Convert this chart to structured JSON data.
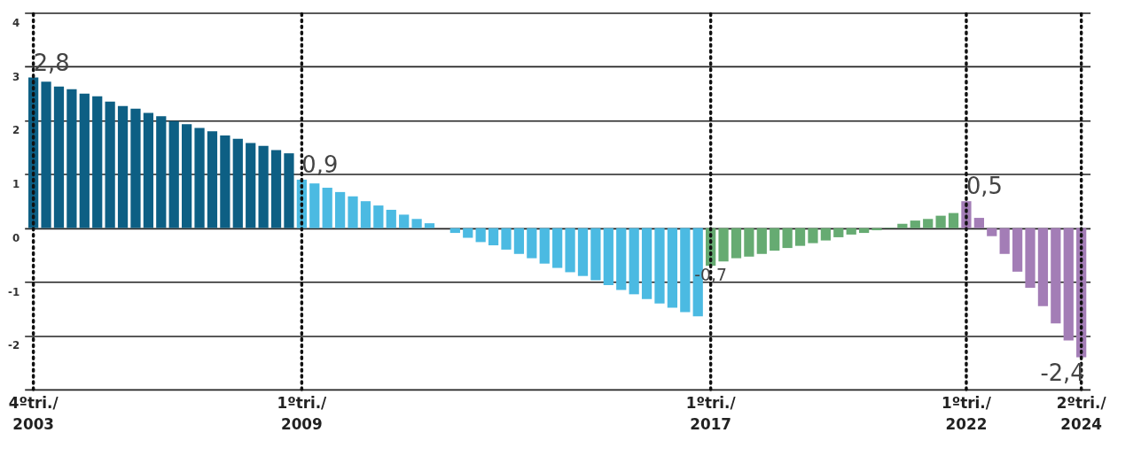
{
  "chart_data": {
    "type": "bar",
    "categories": [
      "4ºtri./2003",
      null,
      null,
      null,
      null,
      null,
      null,
      null,
      null,
      null,
      null,
      null,
      null,
      null,
      null,
      null,
      null,
      null,
      null,
      null,
      null,
      "1ºtri./2009",
      null,
      null,
      null,
      null,
      null,
      null,
      null,
      null,
      null,
      null,
      null,
      null,
      null,
      null,
      null,
      null,
      null,
      null,
      null,
      null,
      null,
      null,
      null,
      null,
      null,
      null,
      null,
      null,
      null,
      null,
      null,
      "1ºtri./2017",
      null,
      null,
      null,
      null,
      null,
      null,
      null,
      null,
      null,
      null,
      null,
      null,
      null,
      null,
      null,
      null,
      null,
      null,
      null,
      "1ºtri./2022",
      null,
      null,
      null,
      null,
      null,
      null,
      null,
      null,
      "2ºtri./2024"
    ],
    "values": [
      2.8,
      2.72,
      2.63,
      2.58,
      2.5,
      2.45,
      2.35,
      2.27,
      2.22,
      2.14,
      2.08,
      1.99,
      1.93,
      1.86,
      1.8,
      1.72,
      1.66,
      1.58,
      1.53,
      1.45,
      1.39,
      0.9,
      0.83,
      0.75,
      0.67,
      0.59,
      0.5,
      0.42,
      0.34,
      0.25,
      0.17,
      0.09,
      0,
      -0.09,
      -0.18,
      -0.26,
      -0.32,
      -0.4,
      -0.48,
      -0.56,
      -0.66,
      -0.74,
      -0.82,
      -0.89,
      -0.97,
      -1.06,
      -1.15,
      -1.23,
      -1.32,
      -1.4,
      -1.48,
      -1.56,
      -1.64,
      -0.7,
      -0.62,
      -0.56,
      -0.53,
      -0.48,
      -0.42,
      -0.37,
      -0.33,
      -0.28,
      -0.23,
      -0.17,
      -0.12,
      -0.09,
      -0.04,
      0.01,
      0.08,
      0.14,
      0.17,
      0.23,
      0.28,
      0.5,
      0.19,
      -0.15,
      -0.48,
      -0.81,
      -1.11,
      -1.45,
      -1.77,
      -2.09,
      -2.4
    ],
    "colors": [
      "#0d5f84",
      "#0d5f84",
      "#0d5f84",
      "#0d5f84",
      "#0d5f84",
      "#0d5f84",
      "#0d5f84",
      "#0d5f84",
      "#0d5f84",
      "#0d5f84",
      "#0d5f84",
      "#0d5f84",
      "#0d5f84",
      "#0d5f84",
      "#0d5f84",
      "#0d5f84",
      "#0d5f84",
      "#0d5f84",
      "#0d5f84",
      "#0d5f84",
      "#0d5f84",
      "#4bbae2",
      "#4bbae2",
      "#4bbae2",
      "#4bbae2",
      "#4bbae2",
      "#4bbae2",
      "#4bbae2",
      "#4bbae2",
      "#4bbae2",
      "#4bbae2",
      "#4bbae2",
      "#4bbae2",
      "#4bbae2",
      "#4bbae2",
      "#4bbae2",
      "#4bbae2",
      "#4bbae2",
      "#4bbae2",
      "#4bbae2",
      "#4bbae2",
      "#4bbae2",
      "#4bbae2",
      "#4bbae2",
      "#4bbae2",
      "#4bbae2",
      "#4bbae2",
      "#4bbae2",
      "#4bbae2",
      "#4bbae2",
      "#4bbae2",
      "#4bbae2",
      "#4bbae2",
      "#66ab72",
      "#66ab72",
      "#66ab72",
      "#66ab72",
      "#66ab72",
      "#66ab72",
      "#66ab72",
      "#66ab72",
      "#66ab72",
      "#66ab72",
      "#66ab72",
      "#66ab72",
      "#66ab72",
      "#66ab72",
      "#66ab72",
      "#66ab72",
      "#66ab72",
      "#66ab72",
      "#66ab72",
      "#66ab72",
      "#a37db6",
      "#a37db6",
      "#a37db6",
      "#a37db6",
      "#a37db6",
      "#a37db6",
      "#a37db6",
      "#a37db6",
      "#a37db6",
      "#a37db6"
    ],
    "value_labels": [
      "2,8",
      null,
      null,
      null,
      null,
      null,
      null,
      null,
      null,
      null,
      null,
      null,
      null,
      null,
      null,
      null,
      null,
      null,
      null,
      null,
      null,
      "0,9",
      null,
      null,
      null,
      null,
      null,
      null,
      null,
      null,
      null,
      null,
      null,
      null,
      null,
      null,
      null,
      null,
      null,
      null,
      null,
      null,
      null,
      null,
      null,
      null,
      null,
      null,
      null,
      null,
      null,
      null,
      null,
      "-0,7",
      null,
      null,
      null,
      null,
      null,
      null,
      null,
      null,
      null,
      null,
      null,
      null,
      null,
      null,
      null,
      null,
      null,
      null,
      null,
      "0,5",
      null,
      null,
      null,
      null,
      null,
      null,
      null,
      null,
      "-2,4"
    ],
    "ylim": [
      -3,
      4
    ],
    "yticks": [
      {
        "value": -3,
        "label": null
      },
      -2,
      -1,
      0,
      1,
      2,
      3,
      4
    ],
    "grid": "y",
    "ref_lines": [
      {
        "axis": "x",
        "value": "4ºtri./2003",
        "label": null,
        "line_style": "dotted"
      },
      {
        "axis": "x",
        "value": "1ºtri./2009",
        "label": null,
        "line_style": "dotted"
      },
      {
        "axis": "x",
        "value": "1ºtri./2017",
        "label": null,
        "line_style": "dotted"
      },
      {
        "axis": "x",
        "value": "1ºtri./2022",
        "label": null,
        "line_style": "dotted"
      },
      {
        "axis": "x",
        "value": "2ºtri./2024",
        "label": null,
        "line_style": "dotted"
      }
    ]
  }
}
